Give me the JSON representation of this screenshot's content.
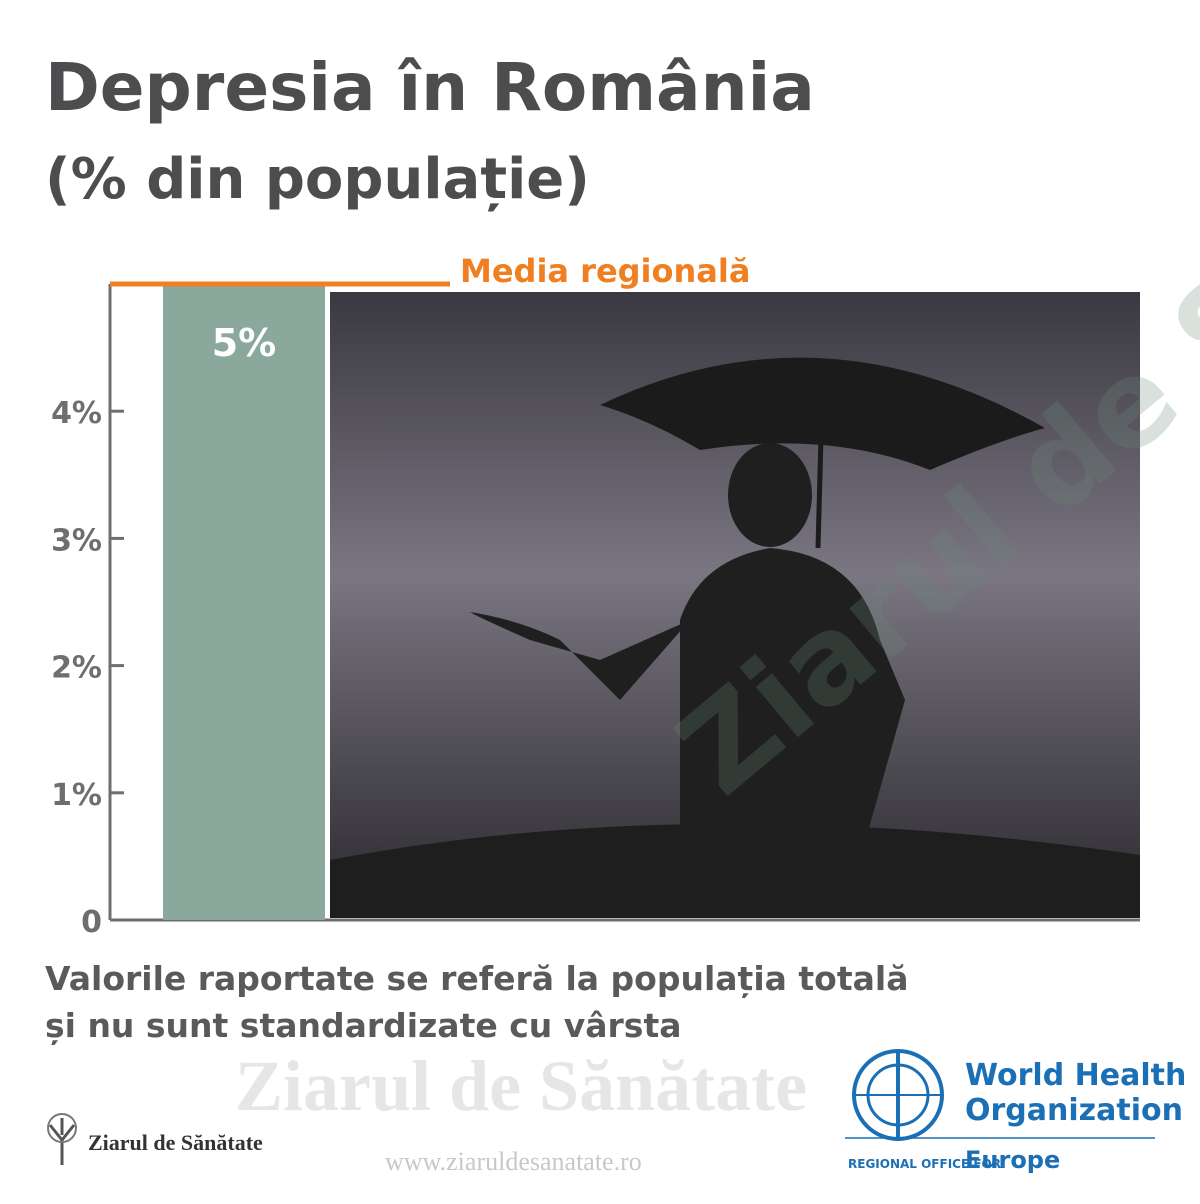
{
  "title": "Depresia în România",
  "subtitle": "(% din populație)",
  "chart_data": {
    "type": "bar",
    "categories": [
      null
    ],
    "values": [
      5
    ],
    "value_labels": [
      "5%"
    ],
    "color": "#8aa89c",
    "ylim": [
      0,
      5
    ],
    "yticks": [
      0,
      {
        "value": 1,
        "label": "1%"
      },
      {
        "value": 2,
        "label": "2%"
      },
      {
        "value": 3,
        "label": "3%"
      },
      {
        "value": 4,
        "label": "4%"
      }
    ],
    "reference": {
      "label": "Media regională",
      "value": 5,
      "color": "#f07f22"
    }
  },
  "note": [
    "Valorile raportate se referă la populația totală",
    "și nu sunt standardizate cu vârsta"
  ],
  "watermark": "Ziarul de Sănătate",
  "brand": "Ziarul de Sănătate",
  "url": "www.ziaruldesanatate.ro",
  "who": {
    "line1": "World Health",
    "line2": "Organization",
    "office": "REGIONAL OFFICE FOR",
    "region": "Europe"
  }
}
